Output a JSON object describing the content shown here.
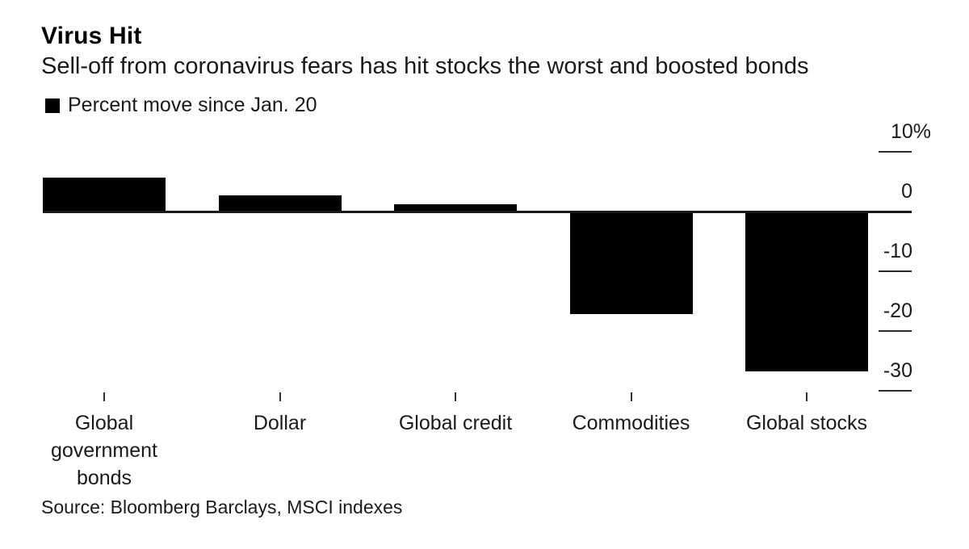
{
  "header": {
    "title": "Virus Hit",
    "subtitle": "Sell-off from coronavirus fears has hit stocks the worst and boosted bonds"
  },
  "legend": {
    "label": "Percent move since Jan. 20",
    "marker_color": "#000000"
  },
  "chart_data": {
    "type": "bar",
    "title": "Virus Hit",
    "subtitle": "Sell-off from coronavirus fears has hit stocks the worst and boosted bonds",
    "series_label": "Percent move since Jan. 20",
    "categories": [
      "Global government bonds",
      "Dollar",
      "Global credit",
      "Commodities",
      "Global stocks"
    ],
    "values": [
      5.7,
      2.7,
      1.2,
      -17.1,
      -26.8
    ],
    "unit": "%",
    "yticks": [
      10,
      0,
      -10,
      -20,
      -30
    ],
    "ytick_labels": [
      "10%",
      "0",
      "-10",
      "-20",
      "-30"
    ],
    "ylim": [
      -33,
      12
    ],
    "baseline": 0,
    "grid": false,
    "bar_color": "#000000",
    "axis_color": "#1a1a1a",
    "value_axis_side": "right",
    "legend_position": "top-left"
  },
  "source": "Source: Bloomberg Barclays, MSCI indexes"
}
